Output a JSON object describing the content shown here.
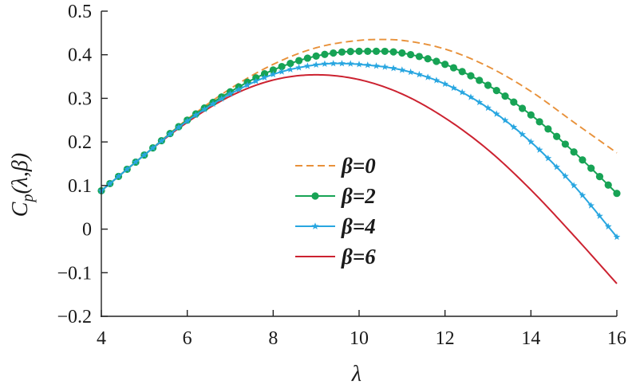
{
  "chart_data": {
    "type": "line",
    "xlabel": "λ",
    "ylabel": "Cp(λ,β)",
    "ylabel_parts": {
      "base": "C",
      "sub": "p",
      "args": "(λ,β)"
    },
    "xlim": [
      4,
      16
    ],
    "ylim": [
      -0.2,
      0.5
    ],
    "x_ticks": [
      "4",
      "6",
      "8",
      "10",
      "12",
      "14",
      "16"
    ],
    "y_ticks": [
      "0.5",
      "0.4",
      "0.3",
      "0.2",
      "0.1",
      "0",
      "−0.1",
      "−0.2"
    ],
    "grid": false,
    "legend_position": "center",
    "series": [
      {
        "name": "β=0",
        "color": "#e8913a",
        "style": "dashed",
        "marker": "none",
        "x": [
          4,
          5,
          6,
          7,
          8,
          9,
          10,
          10.5,
          11,
          12,
          13,
          14,
          15,
          16
        ],
        "y": [
          0.088,
          0.17,
          0.252,
          0.322,
          0.378,
          0.416,
          0.433,
          0.435,
          0.433,
          0.413,
          0.373,
          0.316,
          0.245,
          0.175
        ]
      },
      {
        "name": "β=2",
        "color": "#17a355",
        "style": "solid",
        "marker": "circle",
        "x": [
          4,
          5,
          6,
          7,
          8,
          9,
          10,
          10.5,
          11,
          12,
          13,
          14,
          15,
          16
        ],
        "y": [
          0.088,
          0.17,
          0.25,
          0.315,
          0.365,
          0.397,
          0.408,
          0.408,
          0.404,
          0.378,
          0.33,
          0.262,
          0.177,
          0.082
        ]
      },
      {
        "name": "β=4",
        "color": "#28a6e0",
        "style": "solid",
        "marker": "star",
        "x": [
          4,
          5,
          6,
          7,
          8,
          9,
          9.5,
          10,
          11,
          12,
          13,
          14,
          15,
          16
        ],
        "y": [
          0.088,
          0.17,
          0.248,
          0.31,
          0.355,
          0.377,
          0.38,
          0.378,
          0.365,
          0.333,
          0.278,
          0.2,
          0.1,
          -0.018
        ]
      },
      {
        "name": "β=6",
        "color": "#cc2230",
        "style": "solid",
        "marker": "none",
        "x": [
          4,
          5,
          6,
          7,
          8,
          9,
          10,
          11,
          12,
          13,
          14,
          15,
          16
        ],
        "y": [
          0.088,
          0.17,
          0.245,
          0.305,
          0.342,
          0.354,
          0.343,
          0.31,
          0.255,
          0.182,
          0.09,
          -0.015,
          -0.125
        ]
      }
    ]
  }
}
